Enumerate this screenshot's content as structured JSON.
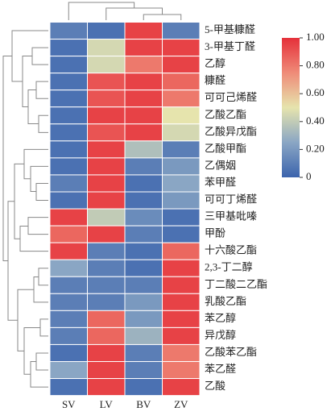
{
  "chart_data": {
    "type": "heatmap",
    "columns": [
      "SV",
      "LV",
      "BV",
      "ZV"
    ],
    "rows": [
      "5-甲基糠醛",
      "3-甲基丁醛",
      "乙醇",
      "糠醛",
      "可可己烯醛",
      "乙酸乙酯",
      "乙酸异戊酯",
      "乙酸甲酯",
      "乙偶姻",
      "苯甲醛",
      "可可丁烯醛",
      "三甲基吡嗪",
      "甲酚",
      "十六酸乙酯",
      "2,3-丁二醇",
      "丁二酸二乙酯",
      "乳酸乙酯",
      "苯乙醇",
      "异戊醇",
      "乙酸苯乙酯",
      "苯乙醛",
      "乙酸"
    ],
    "values": [
      [
        0.1,
        0.05,
        0.95,
        0.1
      ],
      [
        0.05,
        0.45,
        0.95,
        0.95
      ],
      [
        0.05,
        0.45,
        0.8,
        0.95
      ],
      [
        0.05,
        0.9,
        0.95,
        0.85
      ],
      [
        0.05,
        0.9,
        0.95,
        0.8
      ],
      [
        0.05,
        0.95,
        0.95,
        0.5
      ],
      [
        0.05,
        0.9,
        0.95,
        0.45
      ],
      [
        0.05,
        0.95,
        0.35,
        0.1
      ],
      [
        0.05,
        0.95,
        0.1,
        0.2
      ],
      [
        0.1,
        0.95,
        0.05,
        0.25
      ],
      [
        0.05,
        0.95,
        0.05,
        0.2
      ],
      [
        0.95,
        0.4,
        0.15,
        0.05
      ],
      [
        0.85,
        0.95,
        0.1,
        0.05
      ],
      [
        0.95,
        0.1,
        0.05,
        0.85
      ],
      [
        0.25,
        0.1,
        0.05,
        0.95
      ],
      [
        0.1,
        0.1,
        0.1,
        0.95
      ],
      [
        0.1,
        0.1,
        0.2,
        0.95
      ],
      [
        0.1,
        0.85,
        0.2,
        0.95
      ],
      [
        0.1,
        0.85,
        0.3,
        0.95
      ],
      [
        0.05,
        0.95,
        0.1,
        0.8
      ],
      [
        0.25,
        0.95,
        0.1,
        0.8
      ],
      [
        0.05,
        0.95,
        0.05,
        0.95
      ]
    ],
    "colormap": [
      "#3b64ad",
      "#8aa6c4",
      "#e6e4ad",
      "#ef8b78",
      "#e5303a"
    ],
    "clim": [
      0,
      1
    ],
    "cticks": [
      {
        "value": 1,
        "label": "1.00"
      },
      {
        "value": 0.8,
        "label": "0.80"
      },
      {
        "value": 0.6,
        "label": "0.60"
      },
      {
        "value": 0.4,
        "label": "0.40"
      },
      {
        "value": 0.2,
        "label": "0.20"
      },
      0
    ]
  }
}
